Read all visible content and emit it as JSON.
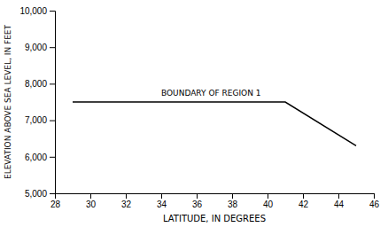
{
  "chart_data": {
    "type": "line",
    "x": [
      29,
      41,
      45
    ],
    "values": [
      7500,
      7500,
      6300
    ],
    "color": "#000000",
    "xlabel": "LATITUDE, IN DEGREES",
    "ylabel": "ELEVATION ABOVE SEA LEVEL, IN FEET",
    "xlim": [
      28,
      46
    ],
    "ylim": [
      5000,
      10000
    ],
    "xticks": [
      28,
      30,
      32,
      34,
      36,
      38,
      40,
      42,
      44,
      46
    ],
    "yticks": [
      {
        "value": 5000,
        "label": "5,000"
      },
      {
        "value": 6000,
        "label": "6,000"
      },
      {
        "value": 7000,
        "label": "7,000"
      },
      {
        "value": 8000,
        "label": "8,000"
      },
      {
        "value": 9000,
        "label": "9,000"
      },
      {
        "value": 10000,
        "label": "10,000"
      }
    ],
    "annotations": [
      {
        "text": "BOUNDARY OF REGION 1",
        "x": 34,
        "y": 7620
      }
    ],
    "grid": false
  }
}
